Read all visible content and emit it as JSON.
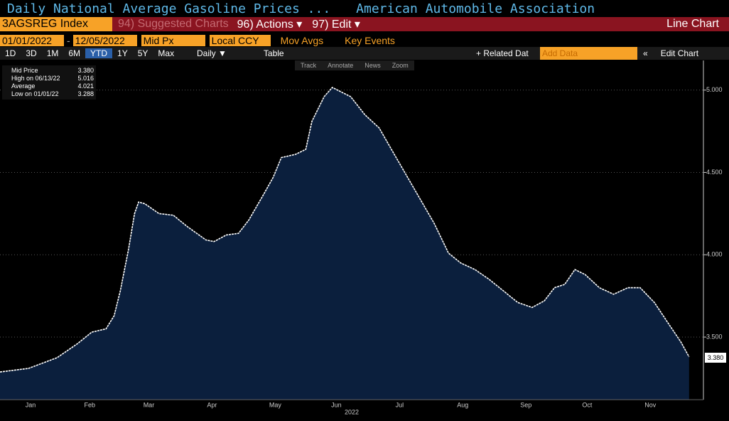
{
  "header": {
    "title": "Daily National Average Gasoline Prices ...",
    "source": "American Automobile Association"
  },
  "toolbar": {
    "ticker": "3AGSREG Index",
    "suggested": "94) Suggested Charts",
    "actions": "96) Actions ▾",
    "edit": "97) Edit ▾",
    "view": "Line Chart"
  },
  "controls": {
    "start_date": "01/01/2022",
    "end_date": "12/05/2022",
    "field": "Mid Px",
    "currency": "Local CCY",
    "mov_avgs": "Mov Avgs",
    "key_events": "Key Events"
  },
  "ranges": [
    "1D",
    "3D",
    "1M",
    "6M",
    "YTD",
    "1Y",
    "5Y",
    "Max"
  ],
  "frequency": "Daily ▼",
  "table": "Table",
  "related": "+ Related Dat",
  "add_data": "Add Data",
  "collapse": "«",
  "edit_chart": "Edit Chart",
  "chart_tools": [
    "Track",
    "Annotate",
    "News",
    "Zoom"
  ],
  "legend": {
    "items": [
      {
        "label": "Mid Price",
        "value": "3.380"
      },
      {
        "label": "High on 06/13/22",
        "value": "5.016"
      },
      {
        "label": "Average",
        "value": "4.021"
      },
      {
        "label": "Low on 01/01/22",
        "value": "3.288"
      }
    ]
  },
  "chart_data": {
    "type": "area",
    "color": "#ffffff",
    "fill": "#0b1f3d",
    "grid": true,
    "xlabel": "2022",
    "x": [
      1,
      15,
      29,
      39,
      46,
      53,
      57,
      60,
      64,
      67,
      69,
      72,
      79,
      86,
      93,
      102,
      106,
      112,
      118,
      123,
      130,
      135,
      139,
      146,
      151,
      154,
      160,
      164,
      173,
      180,
      187,
      193,
      200,
      207,
      214,
      221,
      227,
      234,
      241,
      248,
      255,
      262,
      268,
      273,
      278,
      283,
      288,
      295,
      302,
      309,
      315,
      322,
      329,
      335,
      339
    ],
    "values": [
      3.288,
      3.31,
      3.375,
      3.46,
      3.53,
      3.55,
      3.63,
      3.78,
      4.03,
      4.25,
      4.32,
      4.31,
      4.25,
      4.24,
      4.17,
      4.09,
      4.08,
      4.12,
      4.13,
      4.21,
      4.36,
      4.47,
      4.59,
      4.61,
      4.64,
      4.81,
      4.96,
      5.016,
      4.96,
      4.85,
      4.77,
      4.64,
      4.49,
      4.34,
      4.19,
      4.01,
      3.95,
      3.91,
      3.85,
      3.78,
      3.71,
      3.68,
      3.72,
      3.8,
      3.82,
      3.91,
      3.88,
      3.8,
      3.76,
      3.8,
      3.8,
      3.71,
      3.58,
      3.47,
      3.38
    ],
    "xlim": [
      1,
      345
    ],
    "ylim": [
      3.12,
      5.18
    ],
    "xticks": [
      {
        "value": 16,
        "label": "Jan"
      },
      {
        "value": 45,
        "label": "Feb"
      },
      {
        "value": 74,
        "label": "Mar"
      },
      {
        "value": 105,
        "label": "Apr"
      },
      {
        "value": 136,
        "label": "May"
      },
      {
        "value": 166,
        "label": "Jun"
      },
      {
        "value": 197,
        "label": "Jul"
      },
      {
        "value": 228,
        "label": "Aug"
      },
      {
        "value": 259,
        "label": "Sep"
      },
      {
        "value": 289,
        "label": "Oct"
      },
      {
        "value": 320,
        "label": "Nov"
      }
    ],
    "yticks": [
      {
        "value": 3.5,
        "label": "3.500"
      },
      {
        "value": 4,
        "label": "4.000"
      },
      {
        "value": 4.5,
        "label": "4.500"
      },
      {
        "value": 5,
        "label": "5.000"
      }
    ]
  }
}
